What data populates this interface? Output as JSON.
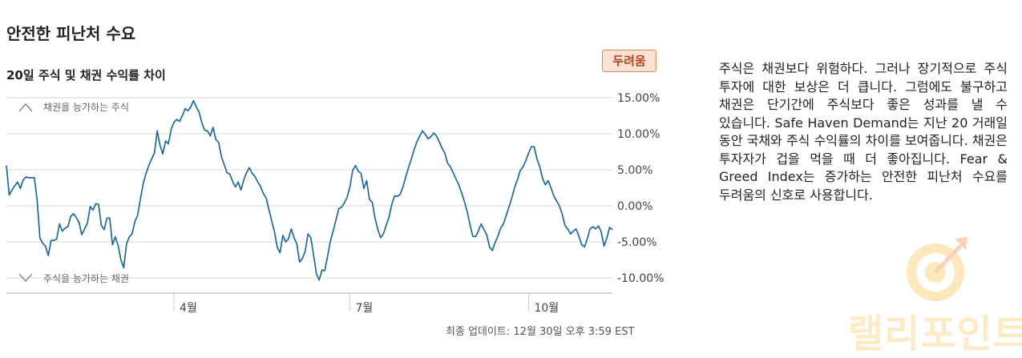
{
  "section": {
    "title": "안전한 피난처 수요",
    "subtitle": "20일 주식 및 채권 수익률 차이",
    "badge": "두려움",
    "updated": "최종 업데이트: 12월 30일 오후 3:59 EST",
    "description": "주식은 채권보다 위험하다. 그러나 장기적으로 주식 투자에 대한 보상은 더 큽니다. 그럼에도 불구하고 채권은 단기간에 주식보다 좋은 성과를 낼 수 있습니다. Safe Haven Demand는 지난 20 거래일 동안 국채와 주식 수익률의 차이를 보여줍니다. 채권은 투자자가 겁을 먹을 때 더 좋아집니다. Fear & Greed Index는 증가하는 안전한 피난처 수요를 두려움의 신호로 사용합니다."
  },
  "watermark": {
    "text": "랠리포인트"
  },
  "colors": {
    "line": "#1c6a97",
    "grid": "#d9d9d9",
    "badge_bg": "#fbe1d3",
    "badge_text": "#b2451a"
  },
  "chart_data": {
    "type": "line",
    "title": "20일 주식 및 채권 수익률 차이",
    "annotations": {
      "top": "채권을 능가하는 주식",
      "bottom": "주식을 능가하는 채권"
    },
    "x_ticks": [
      {
        "label": "4월",
        "index": 60
      },
      {
        "label": "7월",
        "index": 123
      },
      {
        "label": "10월",
        "index": 187
      }
    ],
    "y_ticks": [
      {
        "value": 15,
        "label": "15.00%"
      },
      {
        "value": 10,
        "label": "10.00%"
      },
      {
        "value": 5,
        "label": "5.00%"
      },
      {
        "value": 0,
        "label": "0.00%"
      },
      {
        "value": -5,
        "label": "-5.00%"
      },
      {
        "value": -10,
        "label": "-10.00%"
      }
    ],
    "ylim": [
      -12,
      16
    ],
    "grid": true,
    "series": [
      {
        "values": [
          5.6,
          1.5,
          2.2,
          2.8,
          3.3,
          2.4,
          3.6,
          4.0,
          3.9,
          3.9,
          3.9,
          0.8,
          -4.5,
          -5.2,
          -5.6,
          -6.9,
          -4.8,
          -4.8,
          -4.6,
          -2.5,
          -3.5,
          -3.1,
          -2.9,
          -1.5,
          -1.1,
          -1.6,
          -2.3,
          -4.0,
          -3.2,
          -2.4,
          -0.1,
          -0.6,
          0.3,
          0.2,
          -2.7,
          -3.3,
          -1.7,
          -1.7,
          -5.4,
          -4.3,
          -5.5,
          -7.5,
          -8.6,
          -5.3,
          -4.3,
          -3.9,
          -2.2,
          -1.3,
          1.0,
          3.1,
          4.5,
          5.6,
          6.5,
          7.3,
          10.4,
          8.4,
          7.2,
          9.0,
          8.6,
          10.6,
          11.6,
          12.0,
          11.7,
          12.5,
          13.5,
          13.2,
          13.7,
          14.6,
          13.7,
          13.0,
          11.5,
          10.5,
          10.4,
          9.7,
          10.9,
          9.2,
          8.8,
          6.8,
          5.7,
          4.6,
          4.4,
          3.4,
          2.6,
          3.3,
          2.2,
          3.6,
          4.6,
          5.3,
          4.5,
          4.1,
          3.3,
          2.7,
          1.7,
          1.1,
          -0.5,
          -2.1,
          -3.6,
          -5.8,
          -6.5,
          -4.1,
          -5.0,
          -4.6,
          -3.2,
          -4.4,
          -5.3,
          -7.8,
          -7.3,
          -6.3,
          -3.9,
          -4.4,
          -6.8,
          -9.4,
          -10.3,
          -8.9,
          -9.0,
          -7.0,
          -4.9,
          -3.5,
          -2.0,
          -0.4,
          -0.2,
          0.4,
          1.2,
          2.6,
          4.9,
          5.6,
          4.8,
          4.5,
          2.4,
          3.5,
          0.9,
          0.5,
          -1.7,
          -3.3,
          -4.4,
          -3.9,
          -2.7,
          -1.6,
          0.2,
          1.4,
          1.3,
          1.6,
          2.6,
          4.0,
          5.3,
          6.5,
          7.8,
          8.9,
          9.7,
          10.4,
          9.9,
          9.3,
          9.6,
          10.1,
          9.7,
          8.9,
          8.0,
          7.3,
          5.9,
          5.4,
          4.6,
          3.7,
          2.9,
          1.8,
          0.6,
          -0.8,
          -2.6,
          -4.2,
          -4.3,
          -3.5,
          -2.5,
          -3.3,
          -4.0,
          -5.7,
          -6.2,
          -5.1,
          -4.2,
          -3.1,
          -2.5,
          -1.3,
          -0.1,
          1.1,
          2.6,
          3.6,
          4.9,
          5.4,
          6.3,
          7.3,
          8.2,
          8.2,
          6.5,
          5.4,
          3.8,
          2.9,
          3.5,
          2.5,
          1.4,
          0.7,
          0.0,
          -1.1,
          -2.7,
          -3.2,
          -3.9,
          -3.5,
          -3.2,
          -4.2,
          -5.4,
          -5.7,
          -4.6,
          -3.2,
          -2.9,
          -3.2,
          -2.8,
          -3.6,
          -5.6,
          -4.5,
          -3.0,
          -3.3
        ]
      }
    ]
  }
}
